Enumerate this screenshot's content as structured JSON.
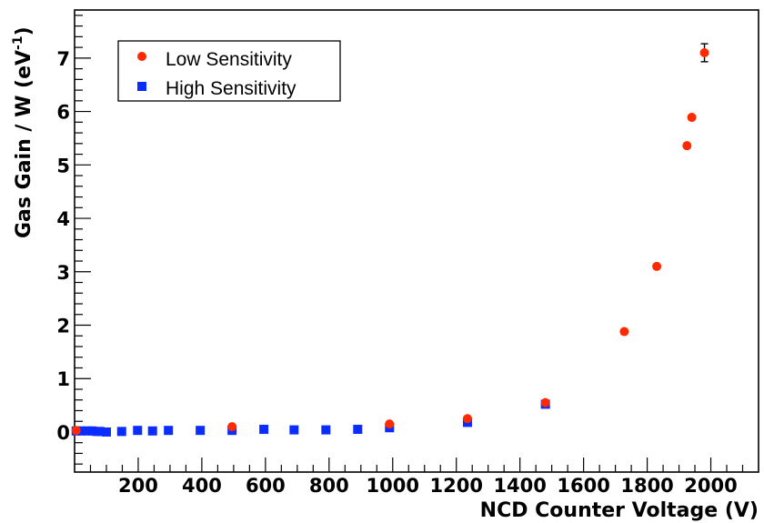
{
  "chart_data": {
    "type": "scatter",
    "xlabel": "NCD Counter Voltage (V)",
    "ylabel_main": "Gas Gain / W (eV",
    "ylabel_sup": "-1",
    "ylabel_tail": ")",
    "xlim": [
      0,
      2150
    ],
    "ylim": [
      -0.75,
      7.9
    ],
    "x_ticks": [
      200,
      400,
      600,
      800,
      1000,
      1200,
      1400,
      1600,
      1800,
      2000
    ],
    "y_ticks": [
      0,
      1,
      2,
      3,
      4,
      5,
      6,
      7
    ],
    "x_tick_labels": [
      "200",
      "400",
      "600",
      "800",
      "1000",
      "1200",
      "1400",
      "1600",
      "1800",
      "2000"
    ],
    "y_tick_labels": [
      "0",
      "1",
      "2",
      "3",
      "4",
      "5",
      "6",
      "7"
    ],
    "grid": false,
    "legend_position": "top-left",
    "series": [
      {
        "name": "Low Sensitivity",
        "marker": "circle",
        "color": "#ff2a00",
        "x": [
          5,
          495,
          990,
          1235,
          1480,
          1728,
          1830,
          1925,
          1940,
          1980
        ],
        "y": [
          0.03,
          0.1,
          0.15,
          0.25,
          0.55,
          1.88,
          3.1,
          5.36,
          5.89,
          7.1
        ],
        "err": [
          0,
          0,
          0,
          0,
          0,
          0,
          0,
          0,
          0,
          0.1
        ]
      },
      {
        "name": "High Sensitivity",
        "marker": "square",
        "color": "#0a2cff",
        "x": [
          5,
          20,
          40,
          55,
          70,
          80,
          100,
          148,
          198,
          245,
          295,
          395,
          495,
          595,
          690,
          790,
          890,
          990,
          1235,
          1480
        ],
        "y": [
          0.02,
          0.02,
          0.02,
          0.02,
          0.01,
          0.01,
          0.0,
          0.01,
          0.03,
          0.02,
          0.03,
          0.03,
          0.03,
          0.05,
          0.04,
          0.04,
          0.05,
          0.08,
          0.18,
          0.52
        ],
        "err": []
      }
    ]
  }
}
